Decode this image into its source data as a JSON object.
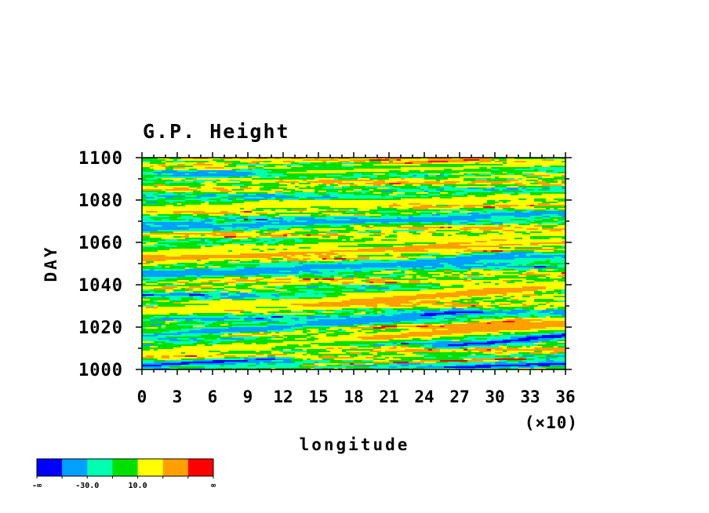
{
  "chart_data": {
    "type": "heatmap",
    "title": "G.P. Height",
    "xlabel": "longitude",
    "ylabel": "DAY",
    "x_scale_note": "(×10)",
    "xlim": [
      0,
      36
    ],
    "ylim": [
      1000,
      1100
    ],
    "x_ticks": [
      "0",
      "3",
      "6",
      "9",
      "12",
      "15",
      "18",
      "21",
      "24",
      "27",
      "30",
      "33",
      "36"
    ],
    "y_ticks": [
      "1000",
      "1020",
      "1040",
      "1060",
      "1080",
      "1100"
    ],
    "colorbar": {
      "colors": [
        "#0000ff",
        "#00a0ff",
        "#00ffb0",
        "#00e000",
        "#ffff00",
        "#ffa000",
        "#ff0000"
      ],
      "labels": [
        "-∞",
        "-30.0",
        "10.0",
        "∞"
      ]
    },
    "features": [
      {
        "kind": "band",
        "tone": 6,
        "x0": 17,
        "y0": 1033,
        "x1": 29,
        "y1": 1038,
        "w": 2.4
      },
      {
        "kind": "band",
        "tone": 6,
        "x0": 26,
        "y0": 1020,
        "x1": 32,
        "y1": 1023,
        "w": 1.8
      },
      {
        "kind": "band",
        "tone": 6,
        "x0": 0,
        "y0": 1054,
        "x1": 8,
        "y1": 1058,
        "w": 1.4
      },
      {
        "kind": "band",
        "tone": 6,
        "x0": 21,
        "y0": 1057,
        "x1": 30,
        "y1": 1061,
        "w": 1.2
      },
      {
        "kind": "band",
        "tone": 6,
        "x0": 21,
        "y0": 1097,
        "x1": 28,
        "y1": 1099,
        "w": 1.2
      },
      {
        "kind": "band",
        "tone": 6,
        "x0": 14,
        "y0": 1002,
        "x1": 32,
        "y1": 1005,
        "w": 0.8
      },
      {
        "kind": "band",
        "tone": 0,
        "x0": 16,
        "y0": 1022,
        "x1": 27,
        "y1": 1027,
        "w": 2.0
      },
      {
        "kind": "band",
        "tone": 0,
        "x0": 26,
        "y0": 1011,
        "x1": 36,
        "y1": 1016,
        "w": 2.0
      },
      {
        "kind": "band",
        "tone": 0,
        "x0": 0,
        "y0": 1002,
        "x1": 11,
        "y1": 1005,
        "w": 1.8
      },
      {
        "kind": "band",
        "tone": 0,
        "x0": 27,
        "y0": 1001,
        "x1": 36,
        "y1": 1003,
        "w": 1.6
      },
      {
        "kind": "band",
        "tone": 0,
        "x0": 1,
        "y0": 1069,
        "x1": 4,
        "y1": 1069,
        "w": 1.2
      },
      {
        "kind": "band",
        "tone": 0,
        "x0": 24,
        "y0": 1051,
        "x1": 32,
        "y1": 1055,
        "w": 1.4
      },
      {
        "kind": "band",
        "tone": 0,
        "x0": 5,
        "y0": 1018,
        "x1": 11,
        "y1": 1019,
        "w": 1.2
      },
      {
        "kind": "band",
        "tone": 1,
        "x0": 0,
        "y0": 1044,
        "x1": 36,
        "y1": 1054,
        "w": 3.0
      },
      {
        "kind": "band",
        "tone": 1,
        "x0": 0,
        "y0": 1016,
        "x1": 22,
        "y1": 1024,
        "w": 2.6
      },
      {
        "kind": "band",
        "tone": 1,
        "x0": 5,
        "y0": 1092,
        "x1": 20,
        "y1": 1095,
        "w": 2.0
      },
      {
        "kind": "band",
        "tone": 1,
        "x0": 0,
        "y0": 1066,
        "x1": 36,
        "y1": 1074,
        "w": 2.2
      },
      {
        "kind": "band",
        "tone": 4,
        "x0": 0,
        "y0": 1008,
        "x1": 36,
        "y1": 1021,
        "w": 3.5
      },
      {
        "kind": "band",
        "tone": 4,
        "x0": 0,
        "y0": 1055,
        "x1": 36,
        "y1": 1064,
        "w": 3.5
      },
      {
        "kind": "band",
        "tone": 4,
        "x0": 0,
        "y0": 1076,
        "x1": 36,
        "y1": 1082,
        "w": 3.0
      },
      {
        "kind": "band",
        "tone": 4,
        "x0": 13,
        "y0": 1093,
        "x1": 36,
        "y1": 1097,
        "w": 3.0
      },
      {
        "kind": "band",
        "tone": 4,
        "x0": 0,
        "y0": 1027,
        "x1": 36,
        "y1": 1040,
        "w": 3.5
      },
      {
        "kind": "band",
        "tone": 5,
        "x0": 15,
        "y0": 1030,
        "x1": 33,
        "y1": 1038,
        "w": 2.5
      },
      {
        "kind": "band",
        "tone": 5,
        "x0": 20,
        "y0": 1015,
        "x1": 36,
        "y1": 1022,
        "w": 2.5
      },
      {
        "kind": "band",
        "tone": 5,
        "x0": 0,
        "y0": 1052,
        "x1": 36,
        "y1": 1060,
        "w": 2.0
      }
    ]
  }
}
